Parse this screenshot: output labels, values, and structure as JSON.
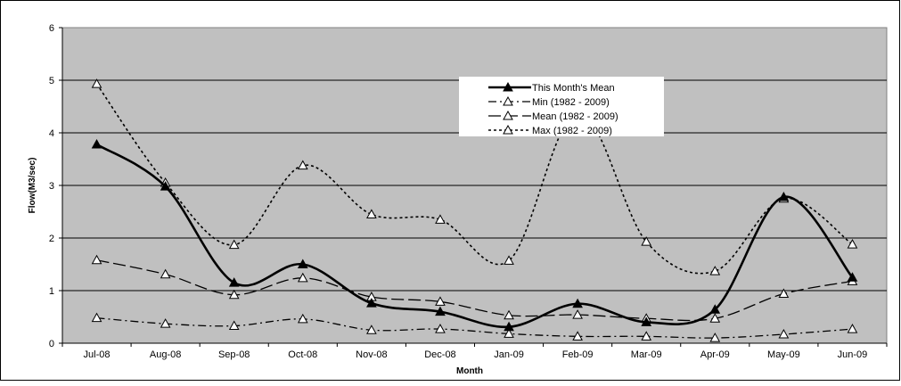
{
  "chart_data": {
    "type": "line",
    "title": "",
    "xlabel": "Month",
    "ylabel": "Flow(M3/sec)",
    "categories": [
      "Jul-08",
      "Aug-08",
      "Sep-08",
      "Oct-08",
      "Nov-08",
      "Dec-08",
      "Jan-09",
      "Feb-09",
      "Mar-09",
      "Apr-09",
      "May-09",
      "Jun-09"
    ],
    "ylim": [
      0,
      6
    ],
    "yticks": [
      0,
      1,
      2,
      3,
      4,
      5,
      6
    ],
    "grid": "horizontal",
    "plot_background": "#c0c0c0",
    "legend_position": "top-center",
    "series": [
      {
        "name": "This Month's Mean",
        "style": "solid-thick",
        "marker": "filled-triangle",
        "values": [
          3.78,
          2.98,
          1.15,
          1.5,
          0.76,
          0.6,
          0.31,
          0.75,
          0.4,
          0.64,
          2.78,
          1.25
        ]
      },
      {
        "name": "Min (1982 - 2009)",
        "style": "dash-dot",
        "marker": "open-triangle",
        "values": [
          0.48,
          0.37,
          0.33,
          0.46,
          0.25,
          0.27,
          0.18,
          0.13,
          0.13,
          0.1,
          0.17,
          0.27
        ]
      },
      {
        "name": "Mean (1982 - 2009)",
        "style": "long-dash",
        "marker": "open-triangle",
        "values": [
          1.58,
          1.31,
          0.92,
          1.24,
          0.88,
          0.79,
          0.53,
          0.54,
          0.47,
          0.47,
          0.94,
          1.18
        ]
      },
      {
        "name": "Max (1982 - 2009)",
        "style": "dotted",
        "marker": "open-triangle",
        "values": [
          4.93,
          3.05,
          1.87,
          3.38,
          2.45,
          2.35,
          1.57,
          4.4,
          1.93,
          1.37,
          2.75,
          1.88
        ]
      }
    ]
  }
}
